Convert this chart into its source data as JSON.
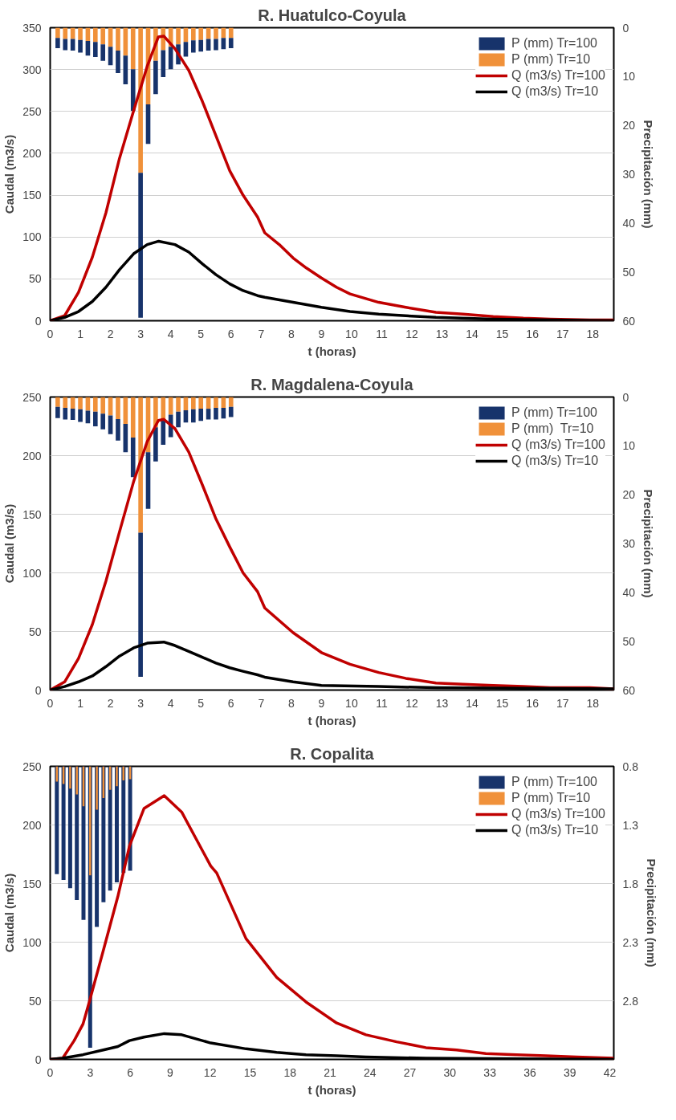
{
  "chart_data": [
    {
      "type": "line",
      "title": "R. Huatulco-Coyula",
      "xlabel": "t (horas)",
      "ylabel": "Caudal (m3/s)",
      "y2label": "Precipitación (mm)",
      "xlim": [
        0,
        18.7
      ],
      "xticks": [
        0,
        1,
        2,
        3,
        4,
        5,
        6,
        7,
        8,
        9,
        10,
        11,
        12,
        13,
        14,
        15,
        16,
        17,
        18
      ],
      "ylim": [
        0,
        350
      ],
      "yticks": [
        0,
        50,
        100,
        150,
        200,
        250,
        300,
        350
      ],
      "y2lim": [
        60,
        0
      ],
      "y2ticks": [
        0,
        10,
        20,
        30,
        40,
        50,
        60
      ],
      "grid": "y",
      "legend": "top right",
      "stacked": true,
      "series": [
        {
          "name": "P (mm) Tr=10",
          "type": "bar",
          "axis": "y2",
          "color": "#f0913a",
          "x": [
            0.25,
            0.5,
            0.75,
            1,
            1.25,
            1.5,
            1.75,
            2,
            2.25,
            2.5,
            2.75,
            3,
            3.25,
            3.5,
            3.75,
            4,
            4.25,
            4.5,
            4.75,
            5,
            5.25,
            5.5,
            5.75,
            6
          ],
          "values": [
            2.1,
            2.3,
            2.3,
            2.5,
            2.7,
            2.9,
            3.4,
            3.9,
            4.7,
            5.7,
            8.5,
            29.7,
            15.7,
            6.8,
            4.6,
            3.9,
            3.4,
            2.9,
            2.6,
            2.5,
            2.3,
            2.3,
            2.1,
            2.1
          ]
        },
        {
          "name": "P (mm) Tr=100",
          "type": "bar",
          "axis": "y2",
          "color": "#17336b",
          "x": [
            0.25,
            0.5,
            0.75,
            1,
            1.25,
            1.5,
            1.75,
            2,
            2.25,
            2.5,
            2.75,
            3,
            3.25,
            3.5,
            3.75,
            4,
            4.25,
            4.5,
            4.75,
            5,
            5.25,
            5.5,
            5.75,
            6
          ],
          "values": [
            2.1,
            2.3,
            2.4,
            2.6,
            3.0,
            3.1,
            3.4,
            3.8,
            4.6,
            5.9,
            8.5,
            29.7,
            8.1,
            6.8,
            5.5,
            4.6,
            4.1,
            3.0,
            2.5,
            2.4,
            2.4,
            2.3,
            2.3,
            2.1
          ]
        },
        {
          "name": "Q (m3/s) Tr=100",
          "color": "#c00000",
          "x": [
            0,
            0.48,
            0.94,
            1.4,
            1.85,
            2.3,
            2.77,
            3.22,
            3.59,
            3.77,
            4.14,
            4.6,
            5.05,
            5.5,
            5.96,
            6.4,
            6.88,
            7.12,
            7.6,
            8.06,
            8.5,
            9.0,
            9.5,
            9.95,
            10.9,
            11.8,
            12.8,
            13.7,
            14.7,
            15.7,
            16.6,
            17.9,
            18.7
          ],
          "values": [
            0,
            6,
            34,
            76,
            129,
            194,
            251,
            304,
            339,
            340,
            325,
            299,
            262,
            221,
            179,
            150,
            124,
            105,
            91,
            75,
            63,
            51,
            40,
            32,
            22,
            16,
            10,
            8,
            5,
            3,
            2,
            1,
            1
          ]
        },
        {
          "name": "Q (m3/s) Tr=10",
          "color": "#000000",
          "x": [
            0,
            0.48,
            0.94,
            1.4,
            1.85,
            2.3,
            2.77,
            3.22,
            3.6,
            4.14,
            4.6,
            5.05,
            5.5,
            5.96,
            6.4,
            6.88,
            7.12,
            8.06,
            9.0,
            9.95,
            10.9,
            11.8,
            12.8,
            14.7,
            16.6,
            18.7
          ],
          "values": [
            0,
            4,
            11,
            23,
            40,
            61,
            80,
            91,
            95,
            91,
            82,
            68,
            55,
            44,
            36,
            30,
            28,
            22,
            16,
            11,
            8,
            6,
            4,
            2,
            1,
            0
          ]
        }
      ]
    },
    {
      "type": "line",
      "title": "R. Magdalena-Coyula",
      "xlabel": "t (horas)",
      "ylabel": "Caudal (m3/s)",
      "y2label": "Precipitación (mm)",
      "xlim": [
        0,
        18.7
      ],
      "xticks": [
        0,
        1,
        2,
        3,
        4,
        5,
        6,
        7,
        8,
        9,
        10,
        11,
        12,
        13,
        14,
        15,
        16,
        17,
        18
      ],
      "ylim": [
        0,
        250
      ],
      "yticks": [
        0,
        50,
        100,
        150,
        200,
        250
      ],
      "y2lim": [
        60,
        0
      ],
      "y2ticks": [
        0,
        10,
        20,
        30,
        40,
        50,
        60
      ],
      "grid": "y",
      "legend": "top right",
      "stacked": true,
      "series": [
        {
          "name": "P (mm)  Tr=10",
          "type": "bar",
          "axis": "y2",
          "color": "#f0913a",
          "x": [
            0.25,
            0.5,
            0.75,
            1,
            1.25,
            1.5,
            1.75,
            2,
            2.25,
            2.5,
            2.75,
            3,
            3.25,
            3.5,
            3.75,
            4,
            4.25,
            4.5,
            4.75,
            5,
            5.25,
            5.5,
            5.75,
            6
          ],
          "values": [
            2.0,
            2.2,
            2.4,
            2.5,
            2.8,
            3.0,
            3.4,
            3.8,
            4.5,
            5.5,
            8.3,
            27.8,
            11.3,
            6.2,
            4.6,
            3.6,
            3.0,
            2.7,
            2.5,
            2.4,
            2.4,
            2.2,
            2.2,
            2.0
          ]
        },
        {
          "name": "P (mm) Tr=100",
          "type": "bar",
          "axis": "y2",
          "color": "#17336b",
          "x": [
            0.25,
            0.5,
            0.75,
            1,
            1.25,
            1.5,
            1.75,
            2,
            2.25,
            2.5,
            2.75,
            3,
            3.25,
            3.5,
            3.75,
            4,
            4.25,
            4.5,
            4.75,
            5,
            5.25,
            5.5,
            5.75,
            6
          ],
          "values": [
            2.3,
            2.4,
            2.3,
            2.6,
            2.6,
            3.0,
            3.2,
            3.8,
            4.4,
            5.8,
            8.1,
            29.5,
            11.6,
            7.0,
            5.2,
            4.6,
            3.2,
            2.5,
            2.7,
            2.5,
            2.2,
            2.4,
            2.2,
            2.1
          ]
        },
        {
          "name": "Q (m3/s) Tr=100",
          "color": "#c00000",
          "x": [
            0,
            0.48,
            0.94,
            1.4,
            1.85,
            2.3,
            2.77,
            3.22,
            3.59,
            3.77,
            4.14,
            4.6,
            5.05,
            5.5,
            5.96,
            6.4,
            6.88,
            7.12,
            8.06,
            9.0,
            9.95,
            10.9,
            11.8,
            12.8,
            13.7,
            14.7,
            15.7,
            16.6,
            17.9,
            18.7
          ],
          "values": [
            0,
            7,
            27,
            56,
            93,
            135,
            178,
            212,
            230,
            231,
            223,
            203,
            175,
            146,
            122,
            100,
            84,
            70,
            49,
            32,
            22,
            15,
            10,
            6,
            5,
            4,
            3,
            2,
            2,
            1
          ]
        },
        {
          "name": "Q (m3/s) Tr=10",
          "color": "#000000",
          "x": [
            0,
            0.48,
            0.94,
            1.4,
            1.85,
            2.3,
            2.77,
            3.22,
            3.77,
            4.14,
            4.6,
            5.05,
            5.5,
            5.96,
            6.4,
            6.88,
            7.12,
            8.06,
            9.0,
            10.9,
            12.8,
            18.7
          ],
          "values": [
            0,
            3,
            7,
            12,
            20,
            29,
            36,
            40,
            41,
            38,
            33,
            28,
            23,
            19,
            16,
            13,
            11,
            7,
            4,
            3,
            2,
            1
          ]
        }
      ]
    },
    {
      "type": "line",
      "title": "R. Copalita",
      "xlabel": "t (horas)",
      "ylabel": "Caudal (m3/s)",
      "y2label": "Precipitación (mm)",
      "xlim": [
        0,
        42.3
      ],
      "xticks": [
        0,
        3,
        6,
        9,
        12,
        15,
        18,
        21,
        24,
        27,
        30,
        33,
        36,
        39,
        42
      ],
      "ylim": [
        0,
        250
      ],
      "yticks": [
        0,
        50,
        100,
        150,
        200,
        250
      ],
      "y2lim": [
        3.3,
        0.8
      ],
      "y2ticks": [
        0.8,
        1.3,
        1.8,
        2.3,
        2.8
      ],
      "grid": "y",
      "legend": "top right",
      "series": [
        {
          "name": "P (mm) Tr=100",
          "type": "bar",
          "axis": "y2",
          "color": "#17336b",
          "x": [
            0.5,
            1,
            1.5,
            2,
            2.5,
            3,
            3.5,
            4,
            4.5,
            5,
            5.5,
            6
          ],
          "values": [
            1.72,
            1.77,
            1.84,
            1.94,
            2.11,
            3.2,
            2.17,
            1.96,
            1.86,
            1.79,
            1.71,
            1.69
          ]
        },
        {
          "name": "P (mm) Tr=10",
          "type": "bar",
          "axis": "y2",
          "color": "#f0913a",
          "x": [
            0.5,
            1,
            1.5,
            2,
            2.5,
            3,
            3.5,
            4,
            4.5,
            5,
            5.5,
            6
          ],
          "values": [
            0.93,
            0.95,
            0.99,
            1.04,
            1.14,
            1.73,
            1.17,
            1.07,
            1.0,
            0.97,
            0.92,
            0.91
          ]
        },
        {
          "name": "Q (m3/s) Tr=100",
          "color": "#c00000",
          "x": [
            0,
            0.94,
            1.8,
            2.46,
            2.96,
            3.99,
            5.08,
            5.95,
            7.04,
            8.56,
            9.87,
            12.05,
            12.5,
            14.7,
            17,
            19.2,
            21.5,
            23.7,
            26,
            28.2,
            30.5,
            32.7,
            35,
            37.2,
            39.5,
            42.3
          ],
          "values": [
            0,
            1,
            16,
            30,
            50,
            93,
            139,
            182,
            214,
            225,
            211,
            165,
            159,
            103,
            70,
            49,
            31,
            21,
            15,
            10,
            8,
            5,
            4,
            3,
            2,
            1
          ]
        },
        {
          "name": "Q (m3/s) Tr=10",
          "color": "#000000",
          "x": [
            0,
            0.94,
            2.46,
            3.99,
            5.08,
            5.95,
            7.04,
            8.56,
            9.87,
            12.05,
            14.7,
            17,
            19.2,
            21.5,
            23.7,
            28.2,
            42.3
          ],
          "values": [
            0,
            1,
            4,
            8,
            11,
            16,
            19,
            22,
            21,
            14,
            9,
            6,
            4,
            3,
            2,
            1,
            0
          ]
        }
      ]
    }
  ]
}
